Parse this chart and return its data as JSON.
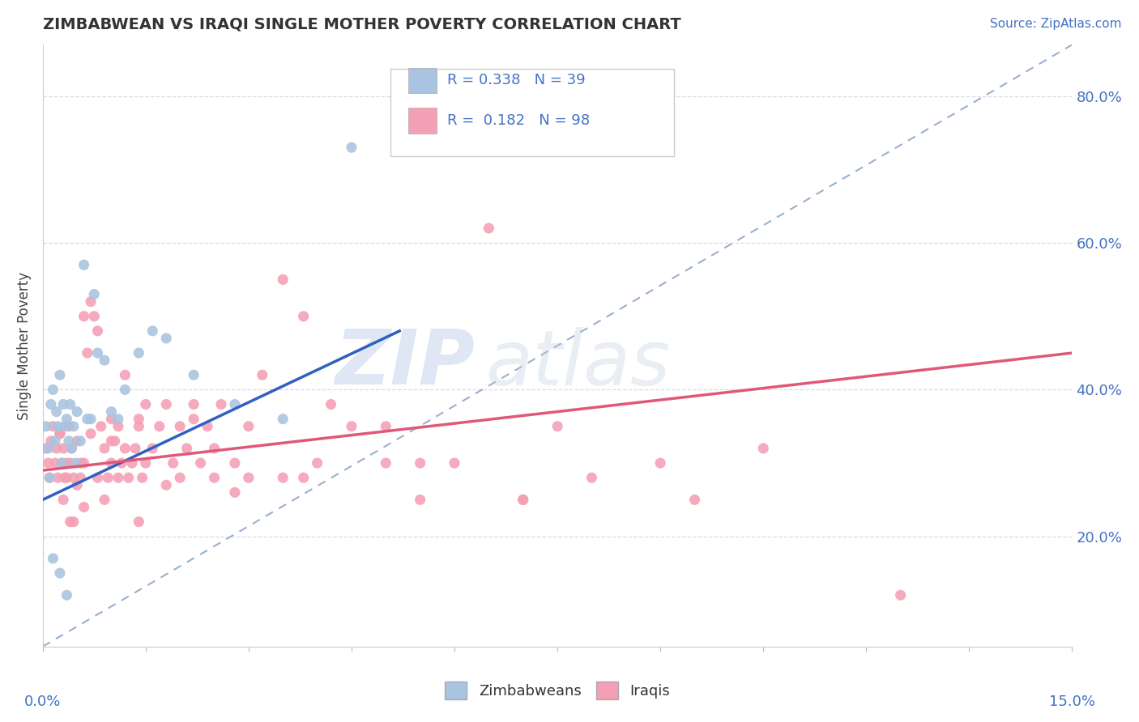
{
  "title": "ZIMBABWEAN VS IRAQI SINGLE MOTHER POVERTY CORRELATION CHART",
  "source": "Source: ZipAtlas.com",
  "ylabel": "Single Mother Poverty",
  "xlim": [
    0.0,
    15.0
  ],
  "ylim": [
    5.0,
    87.0
  ],
  "right_yticks": [
    20.0,
    40.0,
    60.0,
    80.0
  ],
  "zimbabwean_color": "#a8c4e0",
  "iraqi_color": "#f4a0b4",
  "zimbabwean_line_color": "#3060c0",
  "iraqi_line_color": "#e05878",
  "diagonal_color": "#9ab0cc",
  "legend_R_zimbabwean": "R = 0.338",
  "legend_N_zimbabwean": "N = 39",
  "legend_R_iraqi": "R =  0.182",
  "legend_N_iraqi": "N = 98",
  "grid_color": "#d8dce8",
  "background_color": "#ffffff",
  "zim_trend_x0": 0.0,
  "zim_trend_x1": 5.2,
  "zim_trend_y0": 25.0,
  "zim_trend_y1": 48.0,
  "iraqi_trend_x0": 0.0,
  "iraqi_trend_x1": 15.0,
  "iraqi_trend_y0": 29.0,
  "iraqi_trend_y1": 45.0,
  "diag_x0": 0.0,
  "diag_x1": 15.0,
  "diag_y0": 5.0,
  "diag_y1": 87.0,
  "zim_x": [
    0.05,
    0.08,
    0.1,
    0.12,
    0.15,
    0.18,
    0.2,
    0.22,
    0.25,
    0.28,
    0.3,
    0.32,
    0.35,
    0.38,
    0.4,
    0.42,
    0.45,
    0.48,
    0.5,
    0.55,
    0.6,
    0.65,
    0.7,
    0.75,
    0.8,
    0.9,
    1.0,
    1.1,
    1.2,
    1.4,
    1.6,
    1.8,
    2.2,
    2.8,
    3.5,
    4.5,
    0.15,
    0.25,
    0.35
  ],
  "zim_y": [
    35,
    32,
    28,
    38,
    40,
    33,
    37,
    35,
    42,
    30,
    38,
    35,
    36,
    33,
    38,
    32,
    35,
    30,
    37,
    33,
    57,
    36,
    36,
    53,
    45,
    44,
    37,
    36,
    40,
    45,
    48,
    47,
    42,
    38,
    36,
    73,
    17,
    15,
    12
  ],
  "iraqi_x": [
    0.05,
    0.08,
    0.1,
    0.12,
    0.15,
    0.18,
    0.2,
    0.22,
    0.25,
    0.28,
    0.3,
    0.32,
    0.35,
    0.38,
    0.4,
    0.42,
    0.45,
    0.5,
    0.55,
    0.6,
    0.65,
    0.7,
    0.75,
    0.8,
    0.85,
    0.9,
    0.95,
    1.0,
    1.05,
    1.1,
    1.15,
    1.2,
    1.25,
    1.3,
    1.35,
    1.4,
    1.45,
    1.5,
    1.6,
    1.7,
    1.8,
    1.9,
    2.0,
    2.1,
    2.2,
    2.3,
    2.4,
    2.5,
    2.6,
    2.8,
    3.0,
    3.2,
    3.5,
    3.8,
    4.0,
    4.5,
    5.0,
    5.5,
    6.5,
    7.5,
    1.0,
    1.2,
    1.4,
    0.5,
    0.6,
    0.7,
    0.8,
    0.9,
    1.0,
    0.4,
    0.3,
    0.35,
    0.45,
    0.55,
    1.5,
    1.8,
    2.2,
    2.8,
    3.5,
    4.2,
    5.0,
    6.0,
    7.0,
    8.0,
    9.0,
    10.5,
    12.5,
    0.25,
    0.6,
    1.1,
    1.4,
    2.0,
    2.5,
    3.0,
    3.8,
    5.5,
    7.0,
    9.5
  ],
  "iraqi_y": [
    32,
    30,
    28,
    33,
    35,
    30,
    32,
    28,
    34,
    30,
    32,
    28,
    30,
    35,
    30,
    32,
    28,
    33,
    30,
    50,
    45,
    52,
    50,
    48,
    35,
    32,
    28,
    30,
    33,
    35,
    30,
    32,
    28,
    30,
    32,
    35,
    28,
    30,
    32,
    35,
    38,
    30,
    35,
    32,
    38,
    30,
    35,
    32,
    38,
    30,
    35,
    42,
    55,
    50,
    30,
    35,
    35,
    30,
    62,
    35,
    36,
    42,
    36,
    27,
    30,
    34,
    28,
    25,
    33,
    22,
    25,
    28,
    22,
    28,
    38,
    27,
    36,
    26,
    28,
    38,
    30,
    30,
    25,
    28,
    30,
    32,
    12,
    34,
    24,
    28,
    22,
    28,
    28,
    28,
    28,
    25,
    25,
    25
  ]
}
